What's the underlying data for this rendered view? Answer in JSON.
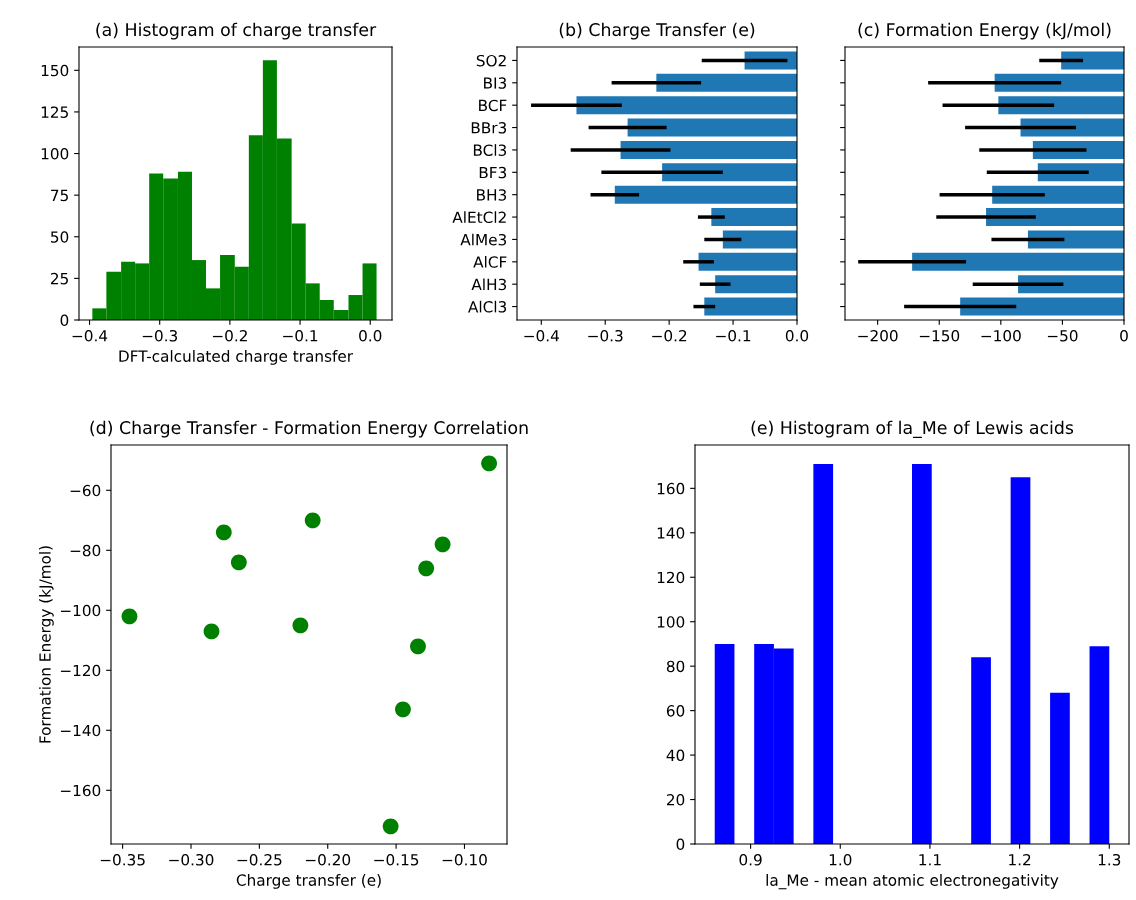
{
  "chart_data": [
    {
      "type": "histogram",
      "title": "(a) Histogram of charge transfer",
      "xlabel": "DFT-calculated charge transfer",
      "color": "#008000",
      "bins": [
        -0.396,
        -0.376,
        -0.355,
        -0.335,
        -0.315,
        -0.295,
        -0.274,
        -0.254,
        -0.234,
        -0.214,
        -0.193,
        -0.173,
        -0.153,
        -0.133,
        -0.112,
        -0.092,
        -0.072,
        -0.052,
        -0.031,
        -0.011,
        0.009
      ],
      "values": [
        7,
        29,
        35,
        34,
        88,
        85,
        89,
        36,
        19,
        39,
        32,
        111,
        156,
        109,
        58,
        22,
        12,
        6,
        15,
        34
      ],
      "xlim": [
        -0.415,
        0.031
      ],
      "xticks": [
        {
          "value": -0.4,
          "label": "−0.4"
        },
        {
          "value": -0.3,
          "label": "−0.3"
        },
        {
          "value": -0.2,
          "label": "−0.2"
        },
        {
          "value": -0.1,
          "label": "−0.1"
        },
        {
          "value": 0.0,
          "label": "0.0"
        }
      ],
      "ylim": [
        0,
        164
      ],
      "yticks": [
        0,
        25,
        50,
        75,
        100,
        125,
        150
      ]
    },
    {
      "type": "bar",
      "orientation": "horizontal",
      "title": "(b) Charge Transfer (e)",
      "color": "#1f77b4",
      "categories": [
        "SO2",
        "BI3",
        "BCF",
        "BBr3",
        "BCl3",
        "BF3",
        "BH3",
        "AlEtCl2",
        "AlMe3",
        "AlCF",
        "AlH3",
        "AlCl3"
      ],
      "values": [
        -0.082,
        -0.22,
        -0.345,
        -0.265,
        -0.276,
        -0.211,
        -0.285,
        -0.134,
        -0.116,
        -0.154,
        -0.128,
        -0.145
      ],
      "errors": [
        0.067,
        0.07,
        0.071,
        0.061,
        0.078,
        0.095,
        0.038,
        0.021,
        0.029,
        0.024,
        0.024,
        0.017
      ],
      "xlim": [
        -0.438,
        0.0
      ],
      "xticks": [
        {
          "value": -0.4,
          "label": "−0.4"
        },
        {
          "value": -0.3,
          "label": "−0.3"
        },
        {
          "value": -0.2,
          "label": "−0.2"
        },
        {
          "value": -0.1,
          "label": "−0.1"
        },
        {
          "value": 0.0,
          "label": "0.0"
        }
      ]
    },
    {
      "type": "bar",
      "orientation": "horizontal",
      "title": "(c) Formation Energy (kJ/mol)",
      "color": "#1f77b4",
      "tick_labels": "x",
      "values": [
        -51,
        -105,
        -102,
        -84,
        -74,
        -70,
        -107,
        -112,
        -78,
        -172,
        -86,
        -133
      ],
      "errors": [
        17.8,
        54,
        45.3,
        45,
        43.5,
        41.4,
        42.7,
        40.4,
        29.6,
        43.8,
        36.8,
        45.5
      ],
      "xlim": [
        -226.5,
        0
      ],
      "xticks": [
        {
          "value": -200,
          "label": "−200"
        },
        {
          "value": -150,
          "label": "−150"
        },
        {
          "value": -100,
          "label": "−100"
        },
        {
          "value": -50,
          "label": "−50"
        },
        0
      ]
    },
    {
      "type": "scatter",
      "title": "(d) Charge Transfer - Formation Energy Correlation",
      "xlabel": "Charge transfer (e)",
      "ylabel": "Formation Energy (kJ/mol)",
      "color": "#008000",
      "marker": "circle",
      "x": [
        -0.082,
        -0.22,
        -0.345,
        -0.265,
        -0.276,
        -0.211,
        -0.285,
        -0.134,
        -0.116,
        -0.154,
        -0.128,
        -0.145
      ],
      "values": [
        -51,
        -105,
        -102,
        -84,
        -74,
        -70,
        -107,
        -112,
        -78,
        -172,
        -86,
        -133
      ],
      "xlim": [
        -0.3585,
        -0.0689
      ],
      "xticks": [
        {
          "value": -0.35,
          "label": "−0.35"
        },
        {
          "value": -0.3,
          "label": "−0.30"
        },
        {
          "value": -0.25,
          "label": "−0.25"
        },
        {
          "value": -0.2,
          "label": "−0.20"
        },
        {
          "value": -0.15,
          "label": "−0.15"
        },
        {
          "value": -0.1,
          "label": "−0.10"
        }
      ],
      "ylim": [
        -177.9,
        -44.9
      ],
      "yticks": [
        {
          "value": -160,
          "label": "−160"
        },
        {
          "value": -140,
          "label": "−140"
        },
        {
          "value": -120,
          "label": "−120"
        },
        {
          "value": -100,
          "label": "−100"
        },
        {
          "value": -80,
          "label": "−80"
        },
        {
          "value": -60,
          "label": "−60"
        }
      ]
    },
    {
      "type": "histogram",
      "title": "(e) Histogram of la_Me of Lewis acids",
      "xlabel": "la_Me - mean atomic electronegativity",
      "color": "#0000ff",
      "bins": [
        0.86,
        0.882,
        0.904,
        0.926,
        0.948,
        0.97,
        0.992,
        1.014,
        1.036,
        1.058,
        1.08,
        1.102,
        1.124,
        1.146,
        1.168,
        1.19,
        1.212,
        1.234,
        1.256,
        1.278,
        1.3
      ],
      "values": [
        90,
        0,
        90,
        88,
        0,
        171,
        0,
        0,
        0,
        0,
        171,
        0,
        0,
        84,
        0,
        165,
        0,
        68,
        0,
        89
      ],
      "xlim": [
        0.838,
        1.322
      ],
      "xticks": [
        0.9,
        {
          "value": 1.0,
          "label": "1.0"
        },
        1.1,
        1.2,
        1.3
      ],
      "ylim": [
        0,
        179.5
      ],
      "yticks": [
        0,
        20,
        40,
        60,
        80,
        100,
        120,
        140,
        160
      ]
    }
  ]
}
